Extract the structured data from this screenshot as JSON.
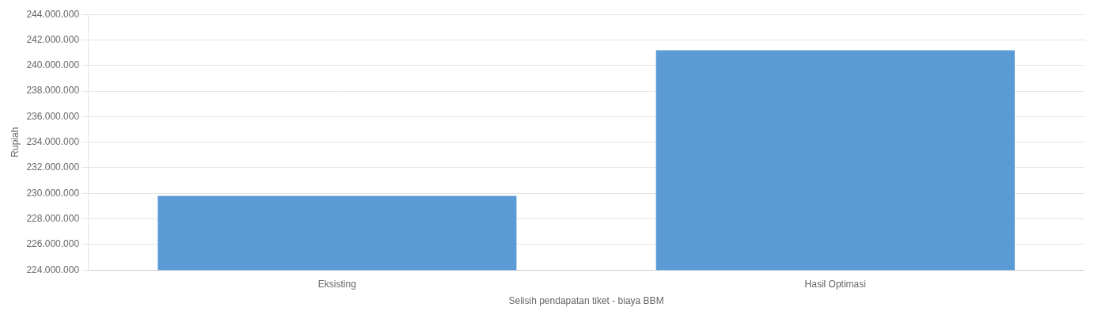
{
  "chart_data": {
    "type": "bar",
    "categories": [
      "Eksisting",
      "Hasil Optimasi"
    ],
    "values": [
      229800000,
      241200000
    ],
    "color": "#5B9BD5",
    "xlabel": "Selisih pendapatan tiket - biaya BBM",
    "ylabel": "Rupiah",
    "ylim": [
      224000000,
      244000000
    ],
    "yticks": [
      {
        "value": 224000000,
        "label": "224.000.000"
      },
      {
        "value": 226000000,
        "label": "226.000.000"
      },
      {
        "value": 228000000,
        "label": "228.000.000"
      },
      {
        "value": 230000000,
        "label": "230.000.000"
      },
      {
        "value": 232000000,
        "label": "232.000.000"
      },
      {
        "value": 234000000,
        "label": "234.000.000"
      },
      {
        "value": 236000000,
        "label": "236.000.000"
      },
      {
        "value": 238000000,
        "label": "238.000.000"
      },
      {
        "value": 240000000,
        "label": "240.000.000"
      },
      {
        "value": 242000000,
        "label": "242.000.000"
      },
      {
        "value": 244000000,
        "label": "244.000.000"
      }
    ],
    "grid": true
  }
}
